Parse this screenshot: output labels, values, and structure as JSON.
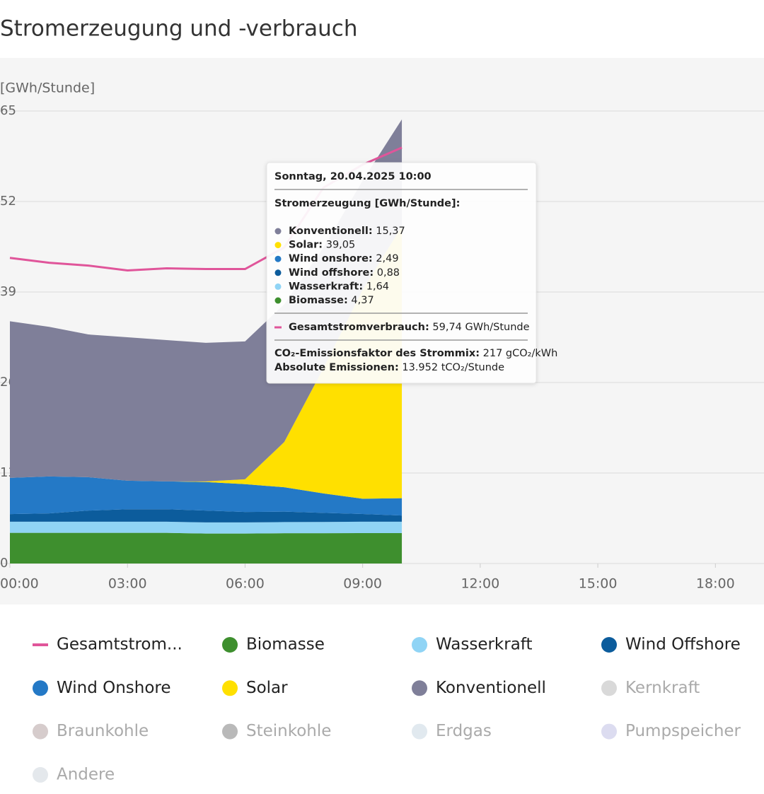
{
  "chart_data": {
    "type": "stacked-area",
    "title": "Stromerzeugung und -verbrauch",
    "y_label": "[GWh/Stunde]",
    "x": [
      0,
      1,
      2,
      3,
      4,
      5,
      6,
      7,
      8,
      9,
      10
    ],
    "xlim": [
      0,
      19.24
    ],
    "xticks": [
      {
        "value": 0,
        "label": "00:00"
      },
      {
        "value": 3,
        "label": "03:00"
      },
      {
        "value": 6,
        "label": "06:00"
      },
      {
        "value": 9,
        "label": "09:00"
      },
      {
        "value": 12,
        "label": "12:00"
      },
      {
        "value": 15,
        "label": "15:00"
      },
      {
        "value": 18,
        "label": "18:00"
      }
    ],
    "ylim": [
      0,
      65
    ],
    "yticks": [
      0,
      13,
      26,
      39,
      52,
      65
    ],
    "grid": true,
    "series": [
      {
        "name": "Biomasse",
        "color": "#3e8f2e",
        "values": [
          4.4,
          4.4,
          4.4,
          4.4,
          4.4,
          4.3,
          4.3,
          4.35,
          4.35,
          4.37,
          4.37
        ]
      },
      {
        "name": "Wasserkraft",
        "color": "#90d4f5",
        "values": [
          1.6,
          1.6,
          1.6,
          1.6,
          1.6,
          1.6,
          1.6,
          1.6,
          1.62,
          1.64,
          1.64
        ]
      },
      {
        "name": "Wind Offshore",
        "color": "#0c5c9c",
        "values": [
          1.1,
          1.2,
          1.6,
          1.8,
          1.8,
          1.7,
          1.5,
          1.5,
          1.3,
          1.1,
          0.88
        ]
      },
      {
        "name": "Wind Onshore",
        "color": "#2479c6",
        "values": [
          5.2,
          5.3,
          4.8,
          4.1,
          4.0,
          4.1,
          4.0,
          3.5,
          2.8,
          2.2,
          2.49
        ]
      },
      {
        "name": "Solar",
        "color": "#ffe000",
        "values": [
          0,
          0,
          0,
          0,
          0,
          0.1,
          0.7,
          6.5,
          18.0,
          30.0,
          39.05
        ]
      },
      {
        "name": "Konventionell",
        "color": "#7f7f99",
        "values": [
          22.5,
          21.5,
          20.5,
          20.6,
          20.3,
          19.9,
          19.8,
          19.8,
          17.3,
          15.7,
          15.37
        ]
      },
      {
        "name": "Gesamtstromverbrauch",
        "color": "#e0559a",
        "type": "line",
        "values": [
          43.9,
          43.2,
          42.8,
          42.1,
          42.4,
          42.3,
          42.3,
          45.4,
          54.0,
          57.3,
          59.74
        ]
      }
    ],
    "legend": [
      {
        "label": "Gesamtstrom...",
        "color": "#e0559a",
        "marker": "line",
        "enabled": true
      },
      {
        "label": "Biomasse",
        "color": "#3e8f2e",
        "enabled": true
      },
      {
        "label": "Wasserkraft",
        "color": "#90d4f5",
        "enabled": true
      },
      {
        "label": "Wind Offshore",
        "color": "#0c5c9c",
        "enabled": true
      },
      {
        "label": "Wind Onshore",
        "color": "#2479c6",
        "enabled": true
      },
      {
        "label": "Solar",
        "color": "#ffe000",
        "enabled": true
      },
      {
        "label": "Konventionell",
        "color": "#7f7f99",
        "enabled": true
      },
      {
        "label": "Kernkraft",
        "color": "#d9d9d9",
        "enabled": false
      },
      {
        "label": "Braunkohle",
        "color": "#d6cccc",
        "enabled": false
      },
      {
        "label": "Steinkohle",
        "color": "#b9b9b9",
        "enabled": false
      },
      {
        "label": "Erdgas",
        "color": "#e1e9ef",
        "enabled": false
      },
      {
        "label": "Pumpspeicher",
        "color": "#dcdcf0",
        "enabled": false
      },
      {
        "label": "Andere",
        "color": "#e4e8ec",
        "enabled": false
      }
    ],
    "tooltip": {
      "title": "Sonntag, 20.04.2025 10:00",
      "section": "Stromerzeugung [GWh/Stunde]:",
      "rows": [
        {
          "label": "Konventionell:",
          "value": "15,37",
          "color": "#7f7f99"
        },
        {
          "label": "Solar:",
          "value": "39,05",
          "color": "#ffe000"
        },
        {
          "label": "Wind onshore:",
          "value": "2,49",
          "color": "#2479c6"
        },
        {
          "label": "Wind offshore:",
          "value": "0,88",
          "color": "#0c5c9c"
        },
        {
          "label": "Wasserkraft:",
          "value": "1,64",
          "color": "#90d4f5"
        },
        {
          "label": "Biomasse:",
          "value": "4,37",
          "color": "#3e8f2e"
        }
      ],
      "consumption": {
        "label": "Gesamtstromverbrauch:",
        "value": "59,74 GWh/Stunde",
        "color": "#e0559a"
      },
      "emissions": [
        {
          "label": "CO₂-Emissionsfaktor des Strommix:",
          "value": "217 gCO₂/kWh"
        },
        {
          "label": "Absolute Emissionen:",
          "value": "13.952 tCO₂/Stunde"
        }
      ]
    }
  }
}
